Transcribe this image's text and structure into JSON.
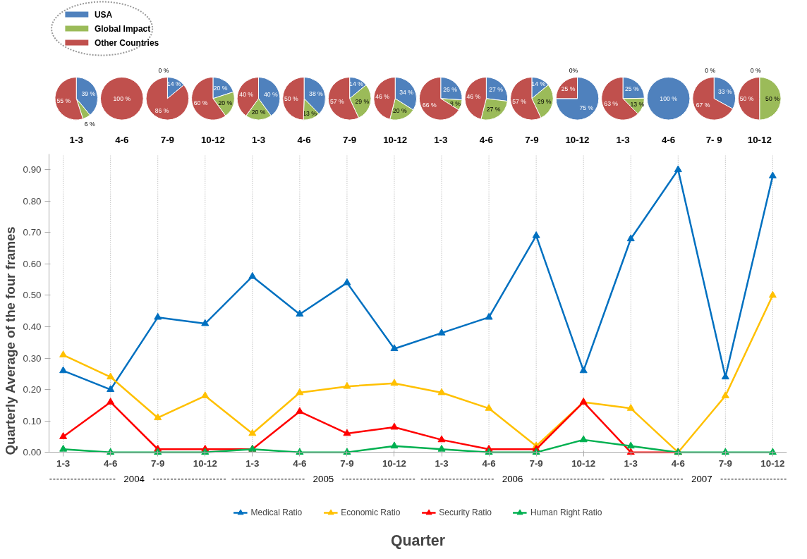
{
  "chart_data": [
    {
      "type": "pie",
      "title": "1-3",
      "categories": [
        "USA",
        "Global Impact",
        "Other Countries"
      ],
      "values": [
        39,
        6,
        55
      ],
      "colors": [
        "#4f81bd",
        "#9bbb59",
        "#c0504d"
      ],
      "value_labels": [
        "39 %",
        "6 %",
        "55 %"
      ],
      "legend": "top right"
    },
    {
      "type": "pie",
      "title": "4-6",
      "values": [
        0,
        0,
        100
      ],
      "colors": [
        "#4f81bd",
        "#9bbb59",
        "#c0504d"
      ],
      "value_labels": [
        null,
        null,
        "100 %"
      ]
    },
    {
      "type": "pie",
      "title": "7-9",
      "values": [
        14,
        0,
        86
      ],
      "colors": [
        "#4f81bd",
        "#9bbb59",
        "#c0504d"
      ],
      "value_labels": [
        "14 %",
        "0 %",
        "86 %"
      ]
    },
    {
      "type": "pie",
      "title": "10-12",
      "values": [
        20,
        20,
        60
      ],
      "colors": [
        "#4f81bd",
        "#9bbb59",
        "#c0504d"
      ],
      "value_labels": [
        "20 %",
        "20 %",
        "60 %"
      ]
    },
    {
      "type": "pie",
      "title": "1-3",
      "values": [
        40,
        20,
        40
      ],
      "colors": [
        "#4f81bd",
        "#9bbb59",
        "#c0504d"
      ],
      "value_labels": [
        "40 %",
        "20 %",
        "40 %"
      ]
    },
    {
      "type": "pie",
      "title": "4-6",
      "values": [
        38,
        13,
        50
      ],
      "colors": [
        "#4f81bd",
        "#9bbb59",
        "#c0504d"
      ],
      "value_labels": [
        "38 %",
        "13 %",
        "50 %"
      ]
    },
    {
      "type": "pie",
      "title": "7-9",
      "values": [
        14,
        29,
        57
      ],
      "colors": [
        "#4f81bd",
        "#9bbb59",
        "#c0504d"
      ],
      "value_labels": [
        "14 %",
        "29 %",
        "57 %"
      ]
    },
    {
      "type": "pie",
      "title": "10-12",
      "values": [
        34,
        20,
        46
      ],
      "colors": [
        "#4f81bd",
        "#9bbb59",
        "#c0504d"
      ],
      "value_labels": [
        "34 %",
        "20 %",
        "46 %"
      ]
    },
    {
      "type": "pie",
      "title": "1-3",
      "values": [
        26,
        8,
        66
      ],
      "colors": [
        "#4f81bd",
        "#9bbb59",
        "#c0504d"
      ],
      "value_labels": [
        "26 %",
        "8 %",
        "66 %"
      ]
    },
    {
      "type": "pie",
      "title": "4-6",
      "values": [
        27,
        27,
        46
      ],
      "colors": [
        "#4f81bd",
        "#9bbb59",
        "#c0504d"
      ],
      "value_labels": [
        "27 %",
        "27 %",
        "46 %"
      ]
    },
    {
      "type": "pie",
      "title": "7-9",
      "values": [
        14,
        29,
        57
      ],
      "colors": [
        "#4f81bd",
        "#9bbb59",
        "#c0504d"
      ],
      "value_labels": [
        "14 %",
        "29 %",
        "57 %"
      ]
    },
    {
      "type": "pie",
      "title": "10-12",
      "values": [
        75,
        0,
        25
      ],
      "colors": [
        "#4f81bd",
        "#9bbb59",
        "#c0504d"
      ],
      "value_labels": [
        "75 %",
        "0%",
        "25 %"
      ]
    },
    {
      "type": "pie",
      "title": "1-3",
      "values": [
        25,
        13,
        63
      ],
      "colors": [
        "#4f81bd",
        "#9bbb59",
        "#c0504d"
      ],
      "value_labels": [
        "25 %",
        "13 %",
        "63 %"
      ]
    },
    {
      "type": "pie",
      "title": "4-6",
      "values": [
        100,
        0,
        0
      ],
      "colors": [
        "#4f81bd",
        "#9bbb59",
        "#c0504d"
      ],
      "value_labels": [
        "100 %",
        null,
        null
      ]
    },
    {
      "type": "pie",
      "title": "7- 9",
      "values": [
        33,
        0,
        67
      ],
      "colors": [
        "#4f81bd",
        "#9bbb59",
        "#c0504d"
      ],
      "value_labels": [
        "33 %",
        "0 %",
        "67 %"
      ]
    },
    {
      "type": "pie",
      "title": "10-12",
      "values": [
        0,
        50,
        50
      ],
      "colors": [
        "#4f81bd",
        "#9bbb59",
        "#c0504d"
      ],
      "value_labels": [
        "0 %",
        "50 %",
        "50 %"
      ]
    },
    {
      "type": "line",
      "xlabel": "Quarter",
      "ylabel": "Quarterly Average of the four frames",
      "categories": [
        "1-3",
        "4-6",
        "7-9",
        "10-12",
        "1-3",
        "4-6",
        "7-9",
        "10-12",
        "1-3",
        "4-6",
        "7-9",
        "10-12",
        "1-3",
        "4-6",
        "7-9",
        "10-12"
      ],
      "series": [
        {
          "name": "Medical Ratio",
          "color": "#0070c0",
          "values": [
            0.26,
            0.2,
            0.43,
            0.41,
            0.56,
            0.44,
            0.54,
            0.33,
            0.38,
            0.43,
            0.69,
            0.26,
            0.68,
            0.9,
            0.24,
            0.88
          ]
        },
        {
          "name": "Economic Ratio",
          "color": "#ffc000",
          "values": [
            0.31,
            0.24,
            0.11,
            0.18,
            0.06,
            0.19,
            0.21,
            0.22,
            0.19,
            0.14,
            0.02,
            0.16,
            0.14,
            0,
            0.18,
            0.5
          ]
        },
        {
          "name": "Security Ratio",
          "color": "#ff0000",
          "values": [
            0.05,
            0.16,
            0.01,
            0.01,
            0.01,
            0.13,
            0.06,
            0.08,
            0.04,
            0.01,
            0.01,
            0.16,
            0,
            0,
            null,
            null
          ]
        },
        {
          "name": "Human Right Ratio",
          "color": "#00b050",
          "values": [
            0.01,
            0,
            0,
            0,
            0.01,
            0,
            0,
            0.02,
            0.01,
            0,
            0,
            0.04,
            0.02,
            0,
            0,
            0
          ]
        }
      ],
      "ylim": [
        0,
        0.95
      ],
      "yticks": [
        {
          "value": 0,
          "label": "0.00"
        },
        {
          "value": 0.1,
          "label": "0.10"
        },
        {
          "value": 0.2,
          "label": "0.20"
        },
        {
          "value": 0.3,
          "label": "0.30"
        },
        {
          "value": 0.4,
          "label": "0.40"
        },
        {
          "value": 0.5,
          "label": "0.50"
        },
        {
          "value": 0.6,
          "label": "0.60"
        },
        {
          "value": 0.7,
          "label": "0.70"
        },
        {
          "value": 0.8,
          "label": "0.80"
        },
        {
          "value": 0.9,
          "label": "0.90"
        }
      ],
      "grid": "x",
      "marker": "triangle",
      "line_style": "solid",
      "legend": "bottom",
      "annotations": [
        "2004",
        "2005",
        "2006",
        "2007"
      ]
    }
  ]
}
